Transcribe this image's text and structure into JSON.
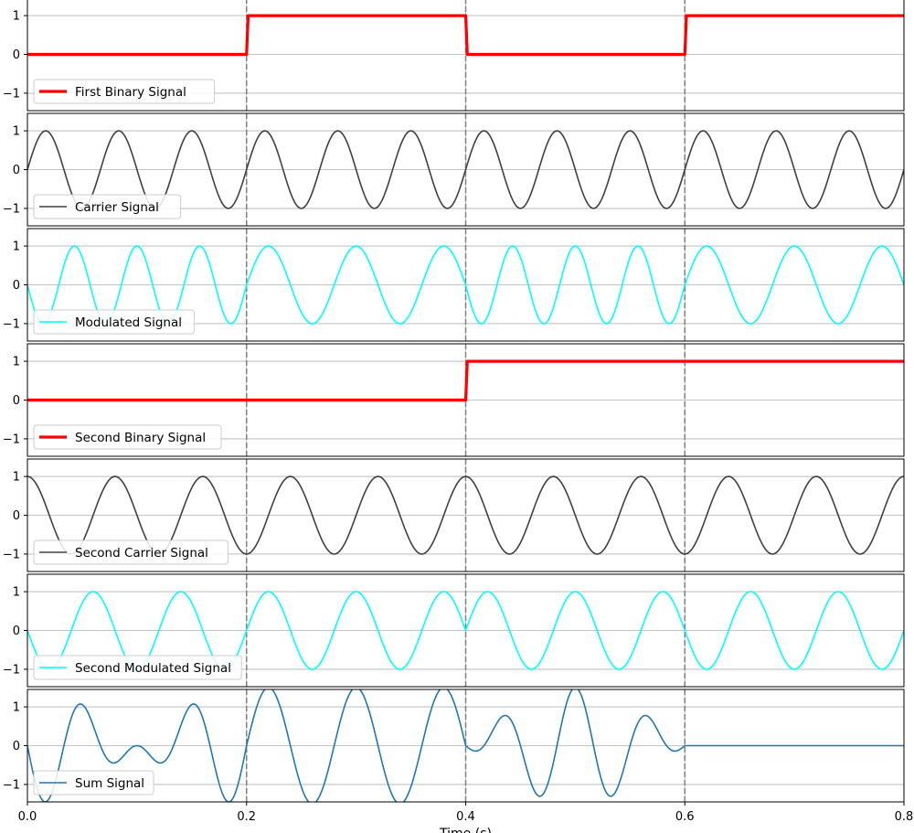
{
  "chart_data": {
    "type": "line",
    "xlim": [
      0.0,
      0.8
    ],
    "x_ticks": [
      0.0,
      0.2,
      0.4,
      0.6,
      0.8
    ],
    "x_tick_labels": [
      "0.0",
      "0.2",
      "0.4",
      "0.6",
      "0.8"
    ],
    "xlabel": "Time (s)",
    "grid": true,
    "legend_position": "lower-left",
    "vertical_markers": [
      0.2,
      0.4,
      0.6
    ],
    "sample_count": 801,
    "panels": [
      {
        "name": "First Binary Signal",
        "kind": "binary",
        "bits": [
          0,
          1,
          0,
          1
        ],
        "bit_boundaries": [
          0.0,
          0.2,
          0.4,
          0.6,
          0.8
        ],
        "color": "#ff0000",
        "line_width": "thick",
        "ylim": [
          -1.45,
          1.45
        ],
        "y_ticks": [
          -1,
          0,
          1
        ],
        "y_tick_labels": [
          "−1",
          "0",
          "1"
        ]
      },
      {
        "name": "Carrier Signal",
        "kind": "sinusoid",
        "waveform": "sine",
        "frequency_hz": 15,
        "amplitude": 1,
        "phase_deg": 0,
        "color": "#404040",
        "ylim": [
          -1.45,
          1.45
        ],
        "y_ticks": [
          -1,
          0,
          1
        ],
        "y_tick_labels": [
          "−1",
          "0",
          "1"
        ]
      },
      {
        "name": "Modulated Signal",
        "kind": "fsk",
        "bits": [
          0,
          1,
          0,
          1
        ],
        "bit_boundaries": [
          0.0,
          0.2,
          0.4,
          0.6,
          0.8
        ],
        "frequency_bit0_hz": 17.5,
        "frequency_bit1_hz": 12.5,
        "phase_bit0_deg": 180,
        "phase_bit1_deg": 180,
        "color": "#00ffff",
        "ylim": [
          -1.45,
          1.45
        ],
        "y_ticks": [
          -1,
          0,
          1
        ],
        "y_tick_labels": [
          "−1",
          "0",
          "1"
        ]
      },
      {
        "name": "Second Binary Signal",
        "kind": "binary",
        "bits": [
          0,
          0,
          1,
          1
        ],
        "bit_boundaries": [
          0.0,
          0.2,
          0.4,
          0.6,
          0.8
        ],
        "color": "#ff0000",
        "line_width": "thick",
        "ylim": [
          -1.45,
          1.45
        ],
        "y_ticks": [
          -1,
          0,
          1
        ],
        "y_tick_labels": [
          "−1",
          "0",
          "1"
        ]
      },
      {
        "name": "Second Carrier Signal",
        "kind": "sinusoid",
        "waveform": "cosine",
        "frequency_hz": 12.5,
        "amplitude": 1,
        "phase_deg": 0,
        "color": "#404040",
        "ylim": [
          -1.45,
          1.45
        ],
        "y_ticks": [
          -1,
          0,
          1
        ],
        "y_tick_labels": [
          "−1",
          "0",
          "1"
        ]
      },
      {
        "name": "Second Modulated Signal",
        "kind": "fsk",
        "bits": [
          0,
          0,
          1,
          1
        ],
        "bit_boundaries": [
          0.0,
          0.2,
          0.4,
          0.6,
          0.8
        ],
        "frequency_bit0_hz": 12.5,
        "frequency_bit1_hz": 12.5,
        "phase_bit0_deg": 180,
        "phase_bit1_deg": 0,
        "color": "#00ffff",
        "ylim": [
          -1.45,
          1.45
        ],
        "y_ticks": [
          -1,
          0,
          1
        ],
        "y_tick_labels": [
          "−1",
          "0",
          "1"
        ]
      },
      {
        "name": "Sum Signal",
        "kind": "sum",
        "sum_of": [
          2,
          5
        ],
        "scale": 0.75,
        "color": "#1f77b4",
        "ylim": [
          -1.45,
          1.45
        ],
        "y_ticks": [
          -1,
          0,
          1
        ],
        "y_tick_labels": [
          "−1",
          "0",
          "1"
        ]
      }
    ]
  }
}
